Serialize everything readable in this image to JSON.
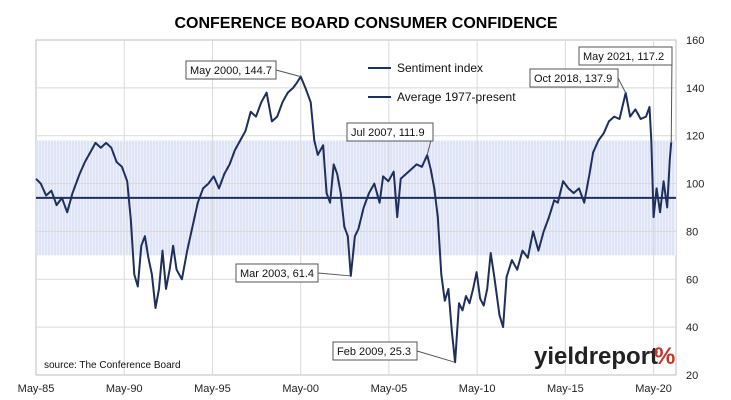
{
  "chart_data": {
    "type": "line",
    "title": "CONFERENCE BOARD CONSUMER CONFIDENCE",
    "source": "source: The Conference Board",
    "x_range": [
      1985.33,
      2021.6
    ],
    "ylim": [
      20,
      160
    ],
    "y_ticks": [
      20,
      40,
      60,
      80,
      100,
      120,
      140,
      160
    ],
    "x_ticks": [
      {
        "label": "May-85",
        "x": 1985.33
      },
      {
        "label": "May-90",
        "x": 1990.33
      },
      {
        "label": "May-95",
        "x": 1995.33
      },
      {
        "label": "May-00",
        "x": 2000.33
      },
      {
        "label": "May-05",
        "x": 2005.33
      },
      {
        "label": "May-10",
        "x": 2010.33
      },
      {
        "label": "May-15",
        "x": 2015.33
      },
      {
        "label": "May-20",
        "x": 2020.33
      }
    ],
    "band": {
      "low": 70,
      "high": 118
    },
    "legend": {
      "position": "top-center",
      "entries": [
        "Sentiment index",
        "Average 1977-present"
      ]
    },
    "average": 94,
    "annotations": [
      {
        "label": "May 2000, 144.7",
        "x": 2000.33,
        "y": 144.7
      },
      {
        "label": "Jul 2007, 111.9",
        "x": 2007.5,
        "y": 111.9
      },
      {
        "label": "Mar 2003, 61.4",
        "x": 2003.17,
        "y": 61.4
      },
      {
        "label": "Feb 2009, 25.3",
        "x": 2009.08,
        "y": 25.3
      },
      {
        "label": "Oct 2018, 137.9",
        "x": 2018.75,
        "y": 137.9
      },
      {
        "label": "May 2021, 117.2",
        "x": 2021.33,
        "y": 117.2
      }
    ],
    "series": [
      {
        "color": "#1f2f5c",
        "points": [
          [
            1985.33,
            102
          ],
          [
            1985.6,
            100
          ],
          [
            1985.9,
            95
          ],
          [
            1986.2,
            97
          ],
          [
            1986.5,
            91
          ],
          [
            1986.8,
            94
          ],
          [
            1987.1,
            88
          ],
          [
            1987.4,
            96
          ],
          [
            1987.8,
            104
          ],
          [
            1988.1,
            109
          ],
          [
            1988.4,
            113
          ],
          [
            1988.7,
            117
          ],
          [
            1989.0,
            115
          ],
          [
            1989.3,
            117
          ],
          [
            1989.6,
            115
          ],
          [
            1989.9,
            109
          ],
          [
            1990.2,
            107
          ],
          [
            1990.5,
            101
          ],
          [
            1990.7,
            85
          ],
          [
            1990.9,
            62
          ],
          [
            1991.1,
            57
          ],
          [
            1991.3,
            74
          ],
          [
            1991.5,
            78
          ],
          [
            1991.7,
            69
          ],
          [
            1991.9,
            62
          ],
          [
            1992.1,
            48
          ],
          [
            1992.3,
            56
          ],
          [
            1992.5,
            72
          ],
          [
            1992.7,
            56
          ],
          [
            1992.9,
            64
          ],
          [
            1993.1,
            74
          ],
          [
            1993.3,
            64
          ],
          [
            1993.6,
            60
          ],
          [
            1993.9,
            72
          ],
          [
            1994.2,
            82
          ],
          [
            1994.5,
            92
          ],
          [
            1994.8,
            98
          ],
          [
            1995.1,
            100
          ],
          [
            1995.4,
            103
          ],
          [
            1995.7,
            98
          ],
          [
            1996.0,
            104
          ],
          [
            1996.3,
            108
          ],
          [
            1996.6,
            114
          ],
          [
            1996.9,
            118
          ],
          [
            1997.2,
            122
          ],
          [
            1997.5,
            130
          ],
          [
            1997.8,
            128
          ],
          [
            1998.1,
            134
          ],
          [
            1998.4,
            138
          ],
          [
            1998.7,
            126
          ],
          [
            1999.0,
            128
          ],
          [
            1999.3,
            134
          ],
          [
            1999.6,
            138
          ],
          [
            1999.9,
            140
          ],
          [
            2000.1,
            142
          ],
          [
            2000.33,
            144.7
          ],
          [
            2000.6,
            140
          ],
          [
            2000.9,
            134
          ],
          [
            2001.1,
            118
          ],
          [
            2001.3,
            112
          ],
          [
            2001.6,
            116
          ],
          [
            2001.8,
            96
          ],
          [
            2002.0,
            92
          ],
          [
            2002.2,
            108
          ],
          [
            2002.4,
            104
          ],
          [
            2002.6,
            96
          ],
          [
            2002.8,
            82
          ],
          [
            2003.0,
            78
          ],
          [
            2003.17,
            61.4
          ],
          [
            2003.4,
            78
          ],
          [
            2003.6,
            81
          ],
          [
            2003.9,
            90
          ],
          [
            2004.2,
            96
          ],
          [
            2004.5,
            100
          ],
          [
            2004.8,
            92
          ],
          [
            2005.0,
            103
          ],
          [
            2005.3,
            101
          ],
          [
            2005.6,
            105
          ],
          [
            2005.8,
            86
          ],
          [
            2006.0,
            102
          ],
          [
            2006.3,
            104
          ],
          [
            2006.6,
            106
          ],
          [
            2006.9,
            108
          ],
          [
            2007.2,
            107
          ],
          [
            2007.5,
            111.9
          ],
          [
            2007.7,
            106
          ],
          [
            2007.9,
            98
          ],
          [
            2008.1,
            86
          ],
          [
            2008.3,
            62
          ],
          [
            2008.5,
            51
          ],
          [
            2008.7,
            56
          ],
          [
            2008.9,
            38
          ],
          [
            2009.08,
            25.3
          ],
          [
            2009.3,
            50
          ],
          [
            2009.5,
            47
          ],
          [
            2009.7,
            53
          ],
          [
            2009.9,
            50
          ],
          [
            2010.1,
            56
          ],
          [
            2010.3,
            63
          ],
          [
            2010.5,
            52
          ],
          [
            2010.7,
            49
          ],
          [
            2010.9,
            56
          ],
          [
            2011.1,
            71
          ],
          [
            2011.3,
            61
          ],
          [
            2011.6,
            45
          ],
          [
            2011.8,
            40
          ],
          [
            2012.0,
            61
          ],
          [
            2012.3,
            68
          ],
          [
            2012.6,
            64
          ],
          [
            2012.9,
            72
          ],
          [
            2013.2,
            69
          ],
          [
            2013.5,
            80
          ],
          [
            2013.8,
            72
          ],
          [
            2014.1,
            80
          ],
          [
            2014.4,
            86
          ],
          [
            2014.7,
            93
          ],
          [
            2014.9,
            92
          ],
          [
            2015.2,
            101
          ],
          [
            2015.5,
            98
          ],
          [
            2015.8,
            96
          ],
          [
            2016.1,
            98
          ],
          [
            2016.4,
            92
          ],
          [
            2016.7,
            104
          ],
          [
            2016.9,
            113
          ],
          [
            2017.2,
            118
          ],
          [
            2017.5,
            121
          ],
          [
            2017.8,
            126
          ],
          [
            2018.1,
            128
          ],
          [
            2018.4,
            127
          ],
          [
            2018.75,
            137.9
          ],
          [
            2019.0,
            128
          ],
          [
            2019.3,
            131
          ],
          [
            2019.6,
            127
          ],
          [
            2019.9,
            128
          ],
          [
            2020.1,
            132
          ],
          [
            2020.2,
            118
          ],
          [
            2020.33,
            86
          ],
          [
            2020.5,
            98
          ],
          [
            2020.7,
            88
          ],
          [
            2020.9,
            101
          ],
          [
            2021.1,
            90
          ],
          [
            2021.25,
            110
          ],
          [
            2021.33,
            117.2
          ]
        ]
      },
      {
        "color": "#1f2f5c",
        "points": [
          [
            1985.33,
            94
          ],
          [
            2021.6,
            94
          ]
        ]
      }
    ]
  },
  "watermark": "yieldreport %"
}
